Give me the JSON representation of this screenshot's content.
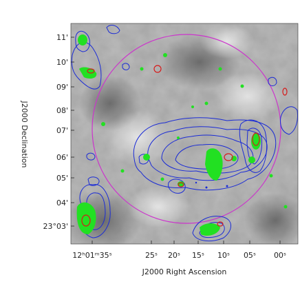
{
  "image": {
    "kind": "radio-continuum contour overlay on greyscale optical image",
    "colors": {
      "background_grey_light": "#d8d8d8",
      "background_grey_dark": "#6a6a6a",
      "contour_blue": "#1a2bd6",
      "contour_red": "#d61a1a",
      "source_green": "#22e022",
      "circle_magenta": "#cc33cc"
    }
  },
  "axes": {
    "x_title": "J2000 Right Ascension",
    "y_title": "J2000 Declination",
    "x_ticks": [
      "12ʰ01ᵐ35ˢ",
      "25ˢ",
      "20ˢ",
      "15ˢ",
      "10ˢ",
      "05ˢ",
      "00ˢ"
    ],
    "y_ticks": [
      "11'",
      "10'",
      "09'",
      "08'",
      "07'",
      "06'",
      "05'",
      "04'",
      "23°03'"
    ]
  }
}
